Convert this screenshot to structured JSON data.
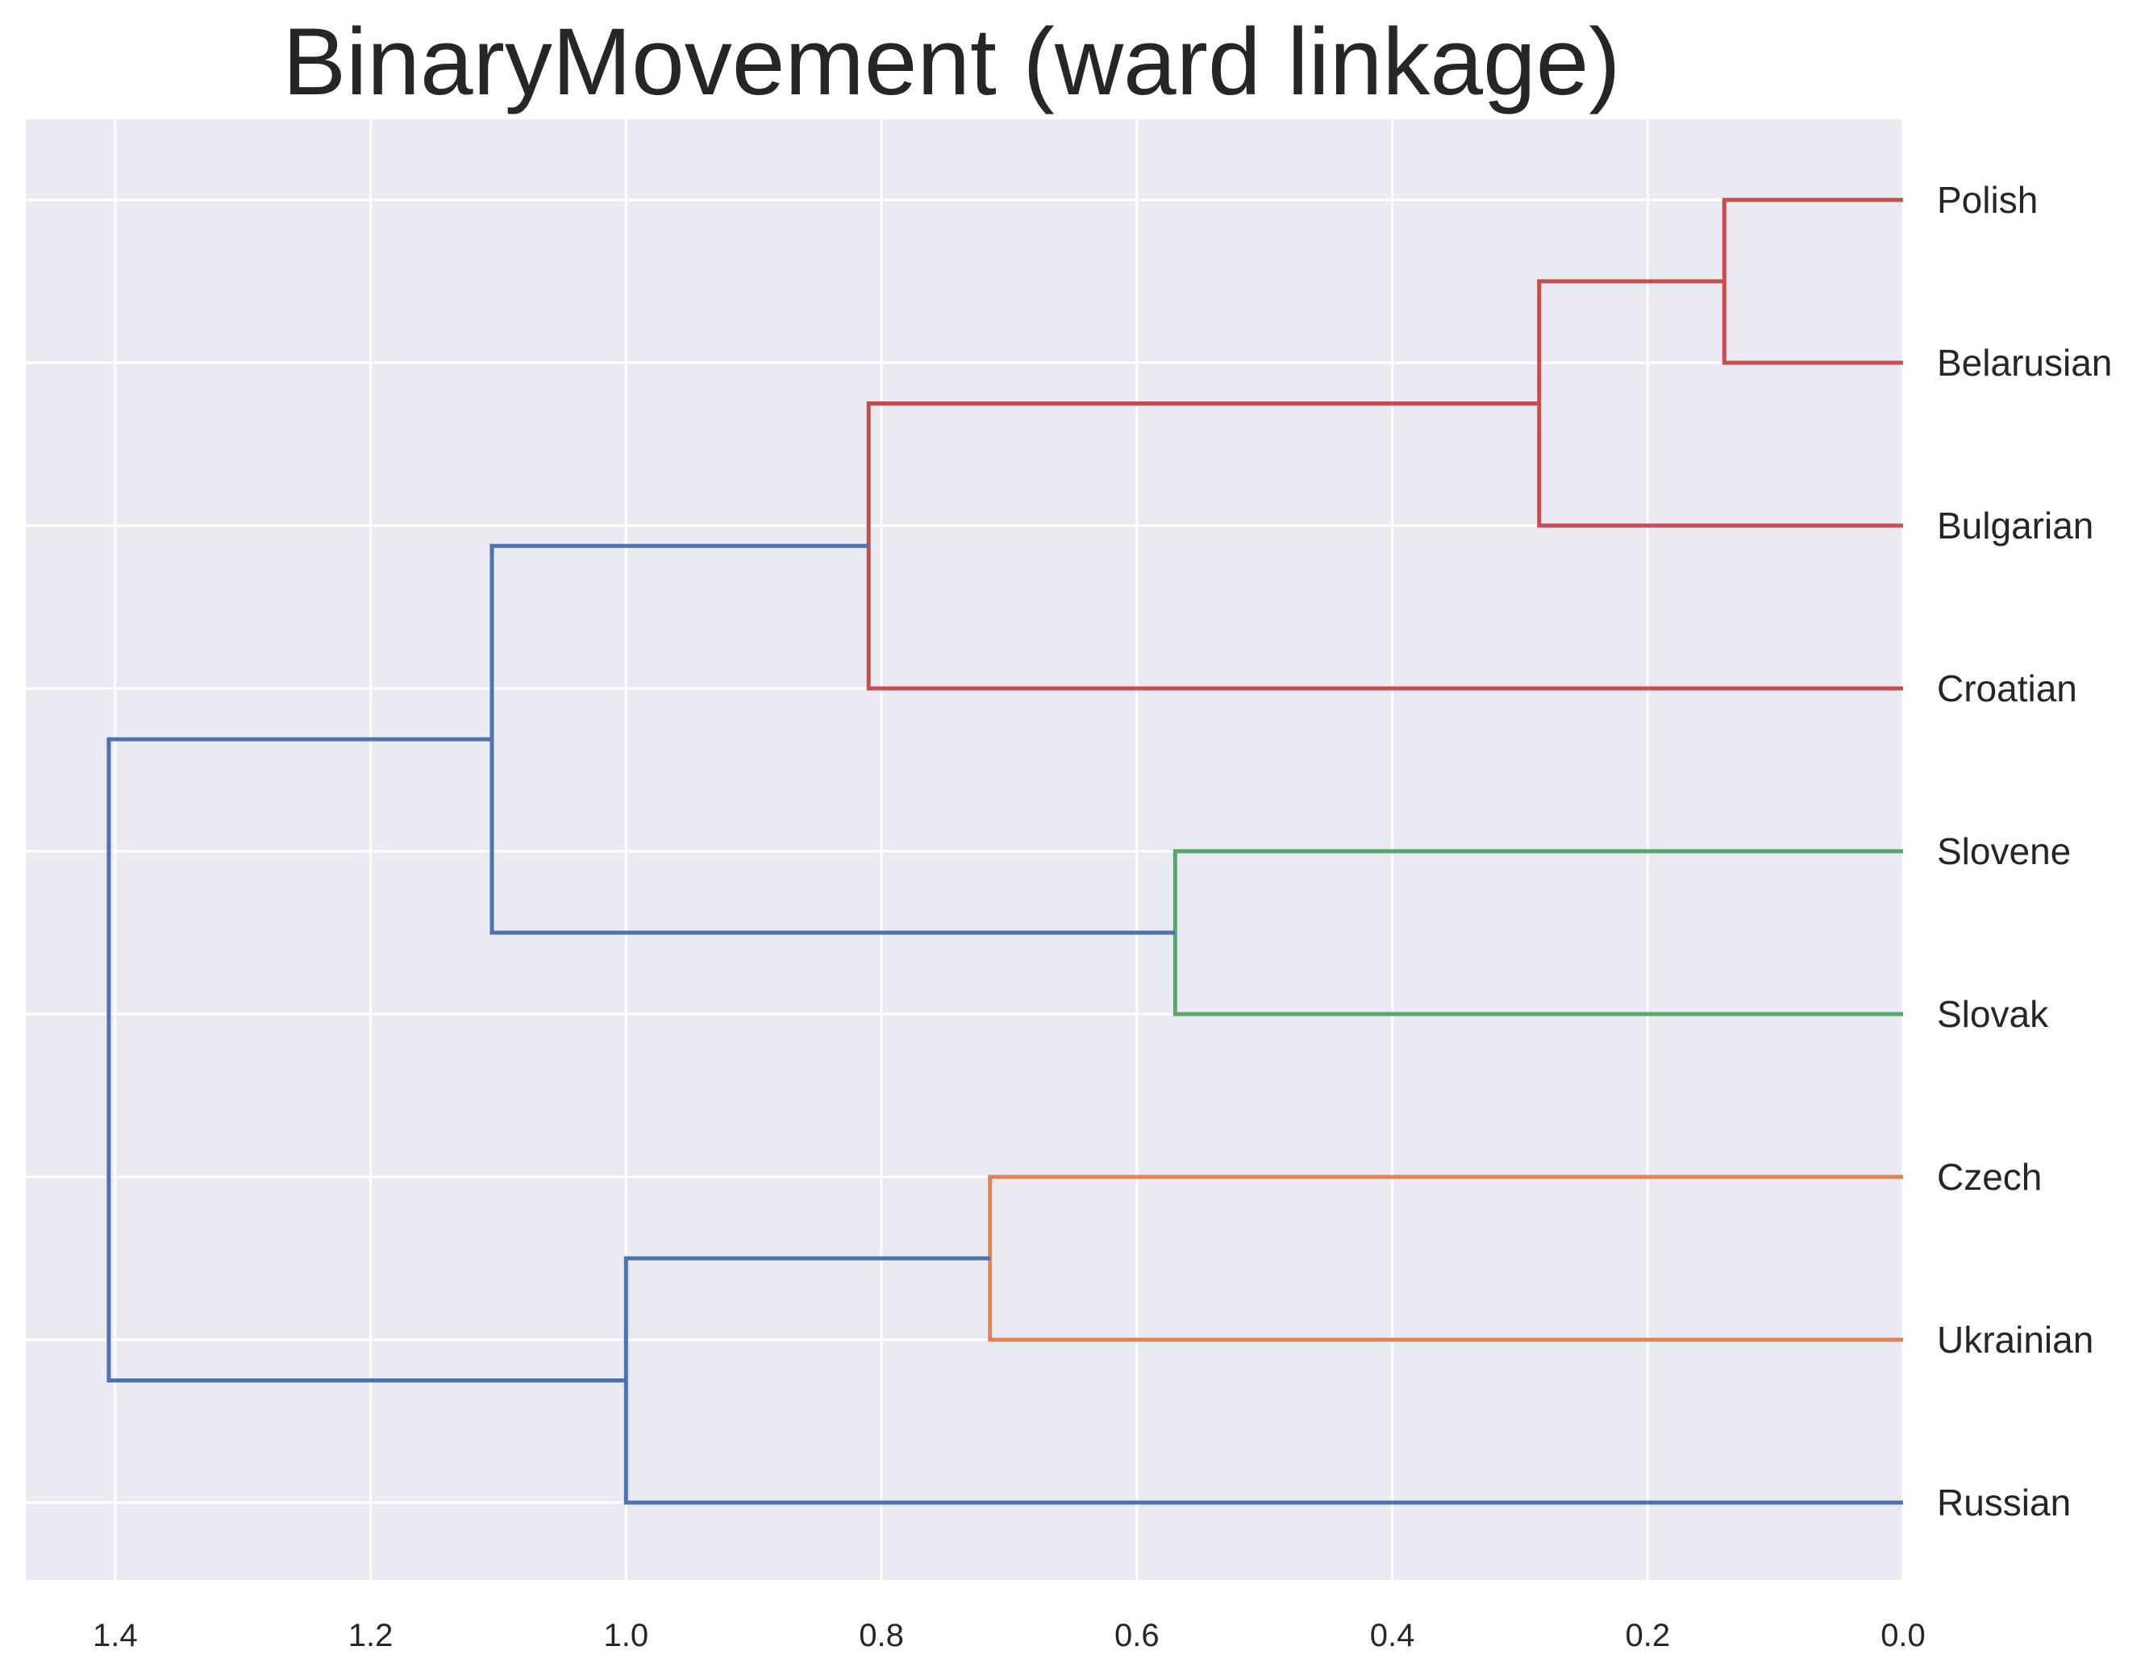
{
  "chart_data": {
    "type": "dendrogram",
    "title": "BinaryMovement (ward linkage)",
    "xlabel": "",
    "ylabel": "",
    "orientation": "left",
    "xlim": [
      1.47,
      0.0
    ],
    "x_ticks": [
      1.4,
      1.2,
      1.0,
      0.8,
      0.6,
      0.4,
      0.2,
      0.0
    ],
    "x_tick_labels": [
      "1.4",
      "1.2",
      "1.0",
      "0.8",
      "0.6",
      "0.4",
      "0.2",
      "0.0"
    ],
    "grid": true,
    "leaves": [
      "Polish",
      "Belarusian",
      "Bulgarian",
      "Croatian",
      "Slovene",
      "Slovak",
      "Czech",
      "Ukrainian",
      "Russian"
    ],
    "merges": [
      {
        "left": "Polish",
        "right": "Belarusian",
        "distance": 0.14,
        "color": "#c44e52"
      },
      {
        "left": "Polish+Belarusian",
        "right": "Bulgarian",
        "distance": 0.285,
        "color": "#c44e52"
      },
      {
        "left": "Polish+Belarusian+Bulgarian",
        "right": "Croatian",
        "distance": 0.81,
        "color": "#c44e52"
      },
      {
        "left": "Slovene",
        "right": "Slovak",
        "distance": 0.57,
        "color": "#55a868"
      },
      {
        "left": "Czech",
        "right": "Ukrainian",
        "distance": 0.715,
        "color": "#dd8452"
      },
      {
        "left": "Polish+Belarusian+Bulgarian+Croatian",
        "right": "Slovene+Slovak",
        "distance": 1.105,
        "color": "#4c72b0"
      },
      {
        "left": "Czech+Ukrainian",
        "right": "Russian",
        "distance": 1.0,
        "color": "#4c72b0"
      },
      {
        "left": "Polish+Belarusian+Bulgarian+Croatian+Slovene+Slovak",
        "right": "Czech+Ukrainian+Russian",
        "distance": 1.405,
        "color": "#4c72b0"
      }
    ],
    "style": {
      "background": "#eaeaf2",
      "grid_color": "#ffffff",
      "text_color": "#262626"
    }
  }
}
